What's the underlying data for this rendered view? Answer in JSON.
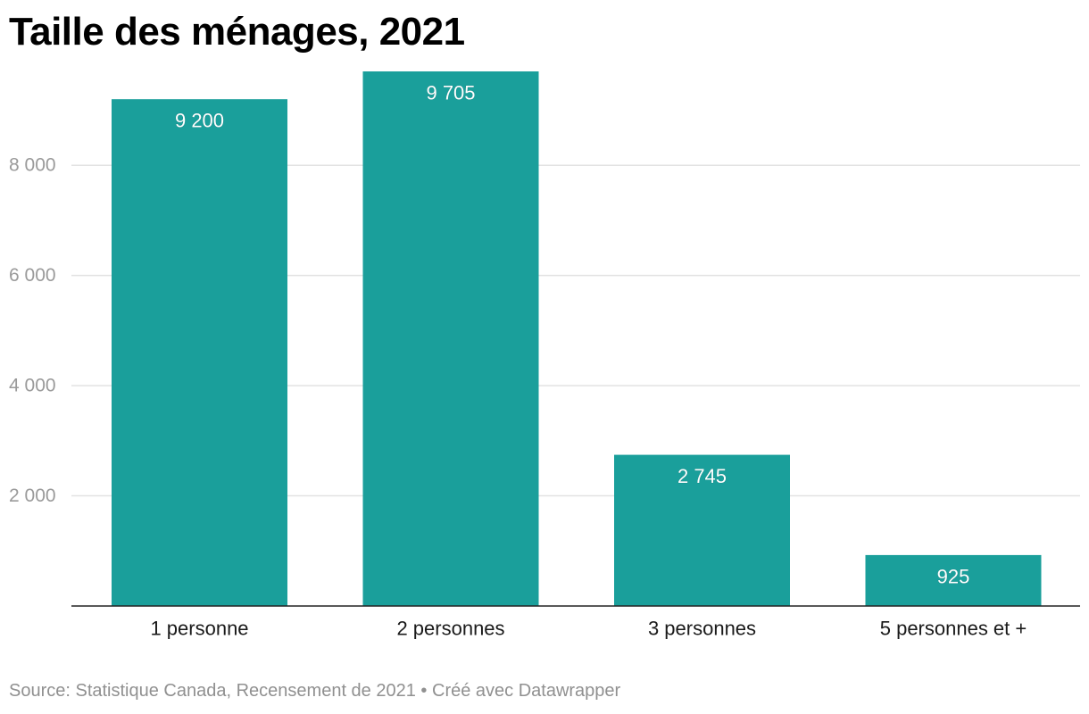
{
  "chart_data": {
    "type": "bar",
    "title": "Taille des ménages, 2021",
    "categories": [
      "1 personne",
      "2 personnes",
      "3 personnes",
      "5 personnes et +"
    ],
    "values": [
      9200,
      9705,
      2745,
      925
    ],
    "value_labels": [
      "9 200",
      "9 705",
      "2 745",
      "925"
    ],
    "yticks": [
      2000,
      4000,
      6000,
      8000
    ],
    "ytick_labels": [
      "2 000",
      "4 000",
      "6 000",
      "8 000"
    ],
    "ylim": [
      0,
      9705
    ],
    "grid": true,
    "bar_color": "#1a9f9b"
  },
  "footer": {
    "source": "Source: Statistique Canada, Recensement de 2021",
    "separator": "•",
    "credit": "Créé avec Datawrapper"
  }
}
